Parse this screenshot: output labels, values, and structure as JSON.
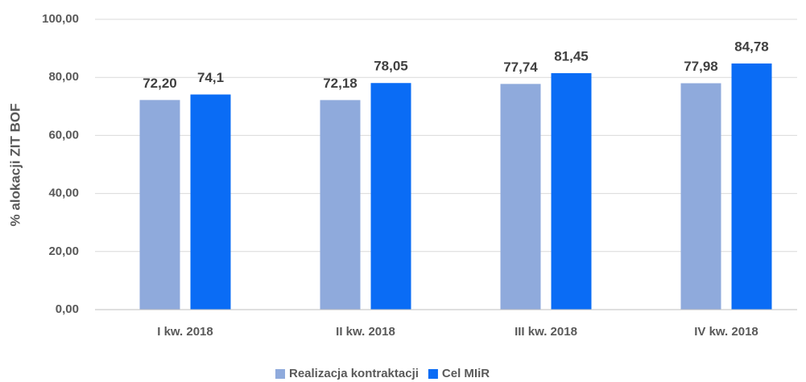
{
  "chart_data": {
    "type": "bar",
    "ylabel": "% alokacji ZIT BOF",
    "categories": [
      "I kw. 2018",
      "II kw. 2018",
      "III kw. 2018",
      "IV kw. 2018"
    ],
    "series": [
      {
        "name": "Realizacja kontraktacji",
        "color": "#8faadc",
        "values": [
          72.2,
          72.18,
          77.74,
          77.98
        ],
        "value_labels": [
          "72,20",
          "72,18",
          "77,74",
          "77,98"
        ]
      },
      {
        "name": "Cel MIiR",
        "color": "#0a6cf5",
        "values": [
          74.1,
          78.05,
          81.45,
          84.78
        ],
        "value_labels": [
          "74,1",
          "78,05",
          "81,45",
          "84,78"
        ]
      }
    ],
    "ylim": [
      0,
      100
    ],
    "yticks": [
      {
        "value": 0,
        "label": "0,00"
      },
      {
        "value": 20,
        "label": "20,00"
      },
      {
        "value": 40,
        "label": "40,00"
      },
      {
        "value": 60,
        "label": "60,00"
      },
      {
        "value": 80,
        "label": "80,00"
      },
      {
        "value": 100,
        "label": "100,00"
      }
    ],
    "grid": true,
    "legend": "bottom"
  }
}
